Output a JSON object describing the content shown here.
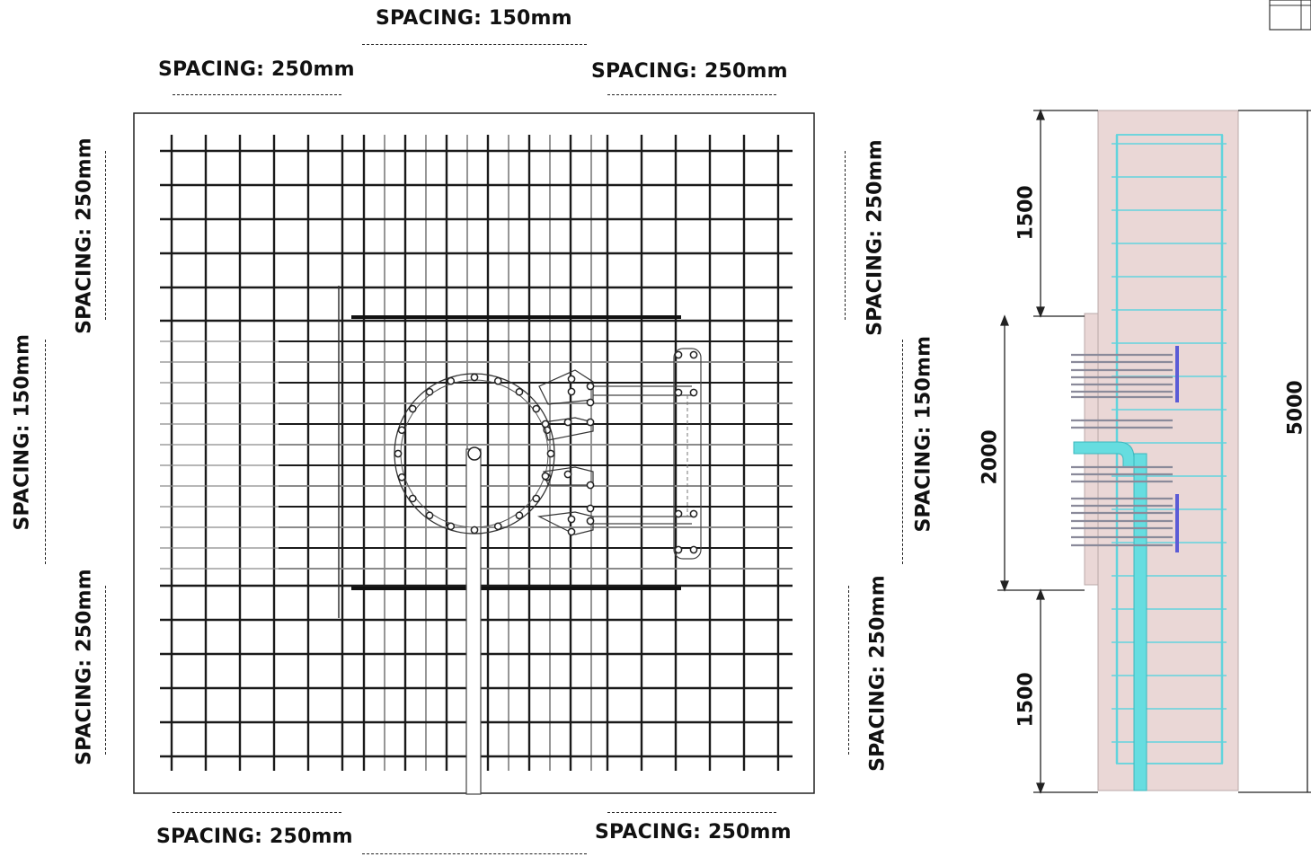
{
  "plan": {
    "top_center": "SPACING: 150mm",
    "top_left": "SPACING: 250mm",
    "top_right": "SPACING: 250mm",
    "bottom_left": "SPACING: 250mm",
    "bottom_right": "SPACING: 250mm",
    "left_top": "SPACING: 250mm",
    "left_mid": "SPACING: 150mm",
    "left_bottom": "SPACING: 250mm",
    "right_top": "SPACING: 250mm",
    "right_mid": "SPACING: 150mm",
    "right_bottom": "SPACING: 250mm"
  },
  "section": {
    "dim_top": "1500",
    "dim_mid": "2000",
    "dim_bottom": "1500",
    "dim_total": "5000"
  },
  "colors": {
    "rebar": "#1a1a1a",
    "rebar_light": "#8a8a8a",
    "concrete": "#ead7d6",
    "section_rebar": "#62d4dd",
    "anchor_bar": "#5b5bd6",
    "pipe": "#66dde0"
  }
}
